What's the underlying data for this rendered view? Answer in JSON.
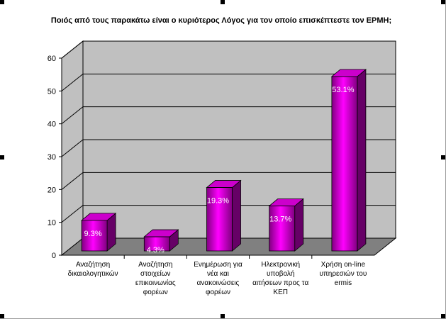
{
  "colors": {
    "wall": "#c0c0c0",
    "floor": "#808080",
    "grid": "#000000",
    "bar_front_mid": "#ff00ff",
    "bar_front_dark": "#800080",
    "bar_top": "#cc00cc",
    "bar_side": "#660066"
  },
  "chart_data": {
    "type": "bar",
    "title": "Ποιός από τους παρακάτω είναι ο κυριότερος Λόγος για τον οποίο επισκέπτεστε τον ΕΡΜΗ;",
    "xlabel": "",
    "ylabel": "",
    "ylim": [
      0,
      60
    ],
    "yticks": [
      "0",
      "10",
      "20",
      "30",
      "40",
      "50",
      "60"
    ],
    "grid": true,
    "legend": "none",
    "categories": [
      [
        "Αναζήτηση",
        "δικαιολογητικών"
      ],
      [
        "Αναζήτηση",
        "στοιχείων",
        "επικοινωνίας",
        "φορέων"
      ],
      [
        "Ενημέρωση για",
        "νέα και",
        "ανακοινώσεις",
        "φορέων"
      ],
      [
        "Ηλεκτρονική",
        "υποβολή",
        "αιτήσεων προς τα",
        "ΚΕΠ"
      ],
      [
        "Χρήση on-line",
        "υπηρεσιών του",
        "ermis"
      ]
    ],
    "values": [
      9.3,
      4.3,
      19.3,
      13.7,
      53.1
    ],
    "data_labels": [
      "9.3%",
      "4.3%",
      "19.3%",
      "13.7%",
      "53.1%"
    ]
  }
}
